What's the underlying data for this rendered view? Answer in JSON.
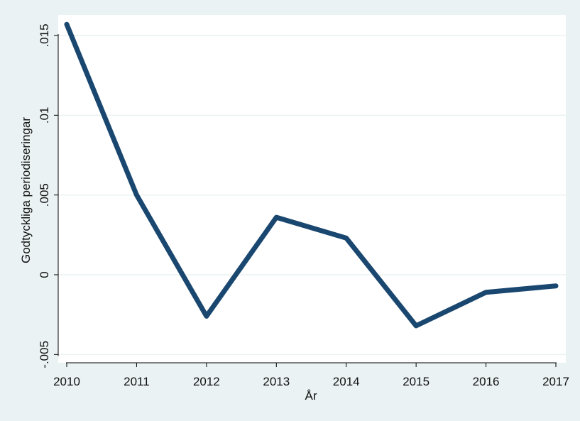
{
  "chart_data": {
    "type": "line",
    "title": "",
    "xlabel": "År",
    "ylabel": "Godtyckliga periodiseringar",
    "x": [
      2010,
      2011,
      2012,
      2013,
      2014,
      2015,
      2016,
      2017
    ],
    "series": [
      {
        "values": [
          0.0157,
          0.005,
          -0.0026,
          0.0036,
          0.0023,
          -0.0032,
          -0.0011,
          -0.0007
        ]
      }
    ],
    "xticks": [
      2010,
      2011,
      2012,
      2013,
      2014,
      2015,
      2016,
      2017
    ],
    "xtick_labels": [
      "2010",
      "2011",
      "2012",
      "2013",
      "2014",
      "2015",
      "2016",
      "2017"
    ],
    "yticks": [
      -0.005,
      0,
      0.005,
      0.01,
      0.015
    ],
    "ytick_labels": [
      "-.005",
      "0",
      ".005",
      ".01",
      ".015"
    ],
    "xlim": [
      2010,
      2017
    ],
    "ylim": [
      -0.005,
      0.015
    ],
    "grid": true,
    "colors": {
      "line": "#1a476f",
      "plot_background": "#ffffff",
      "outer_background": "#eaf2f3",
      "grid": "#eaf2f3"
    }
  }
}
